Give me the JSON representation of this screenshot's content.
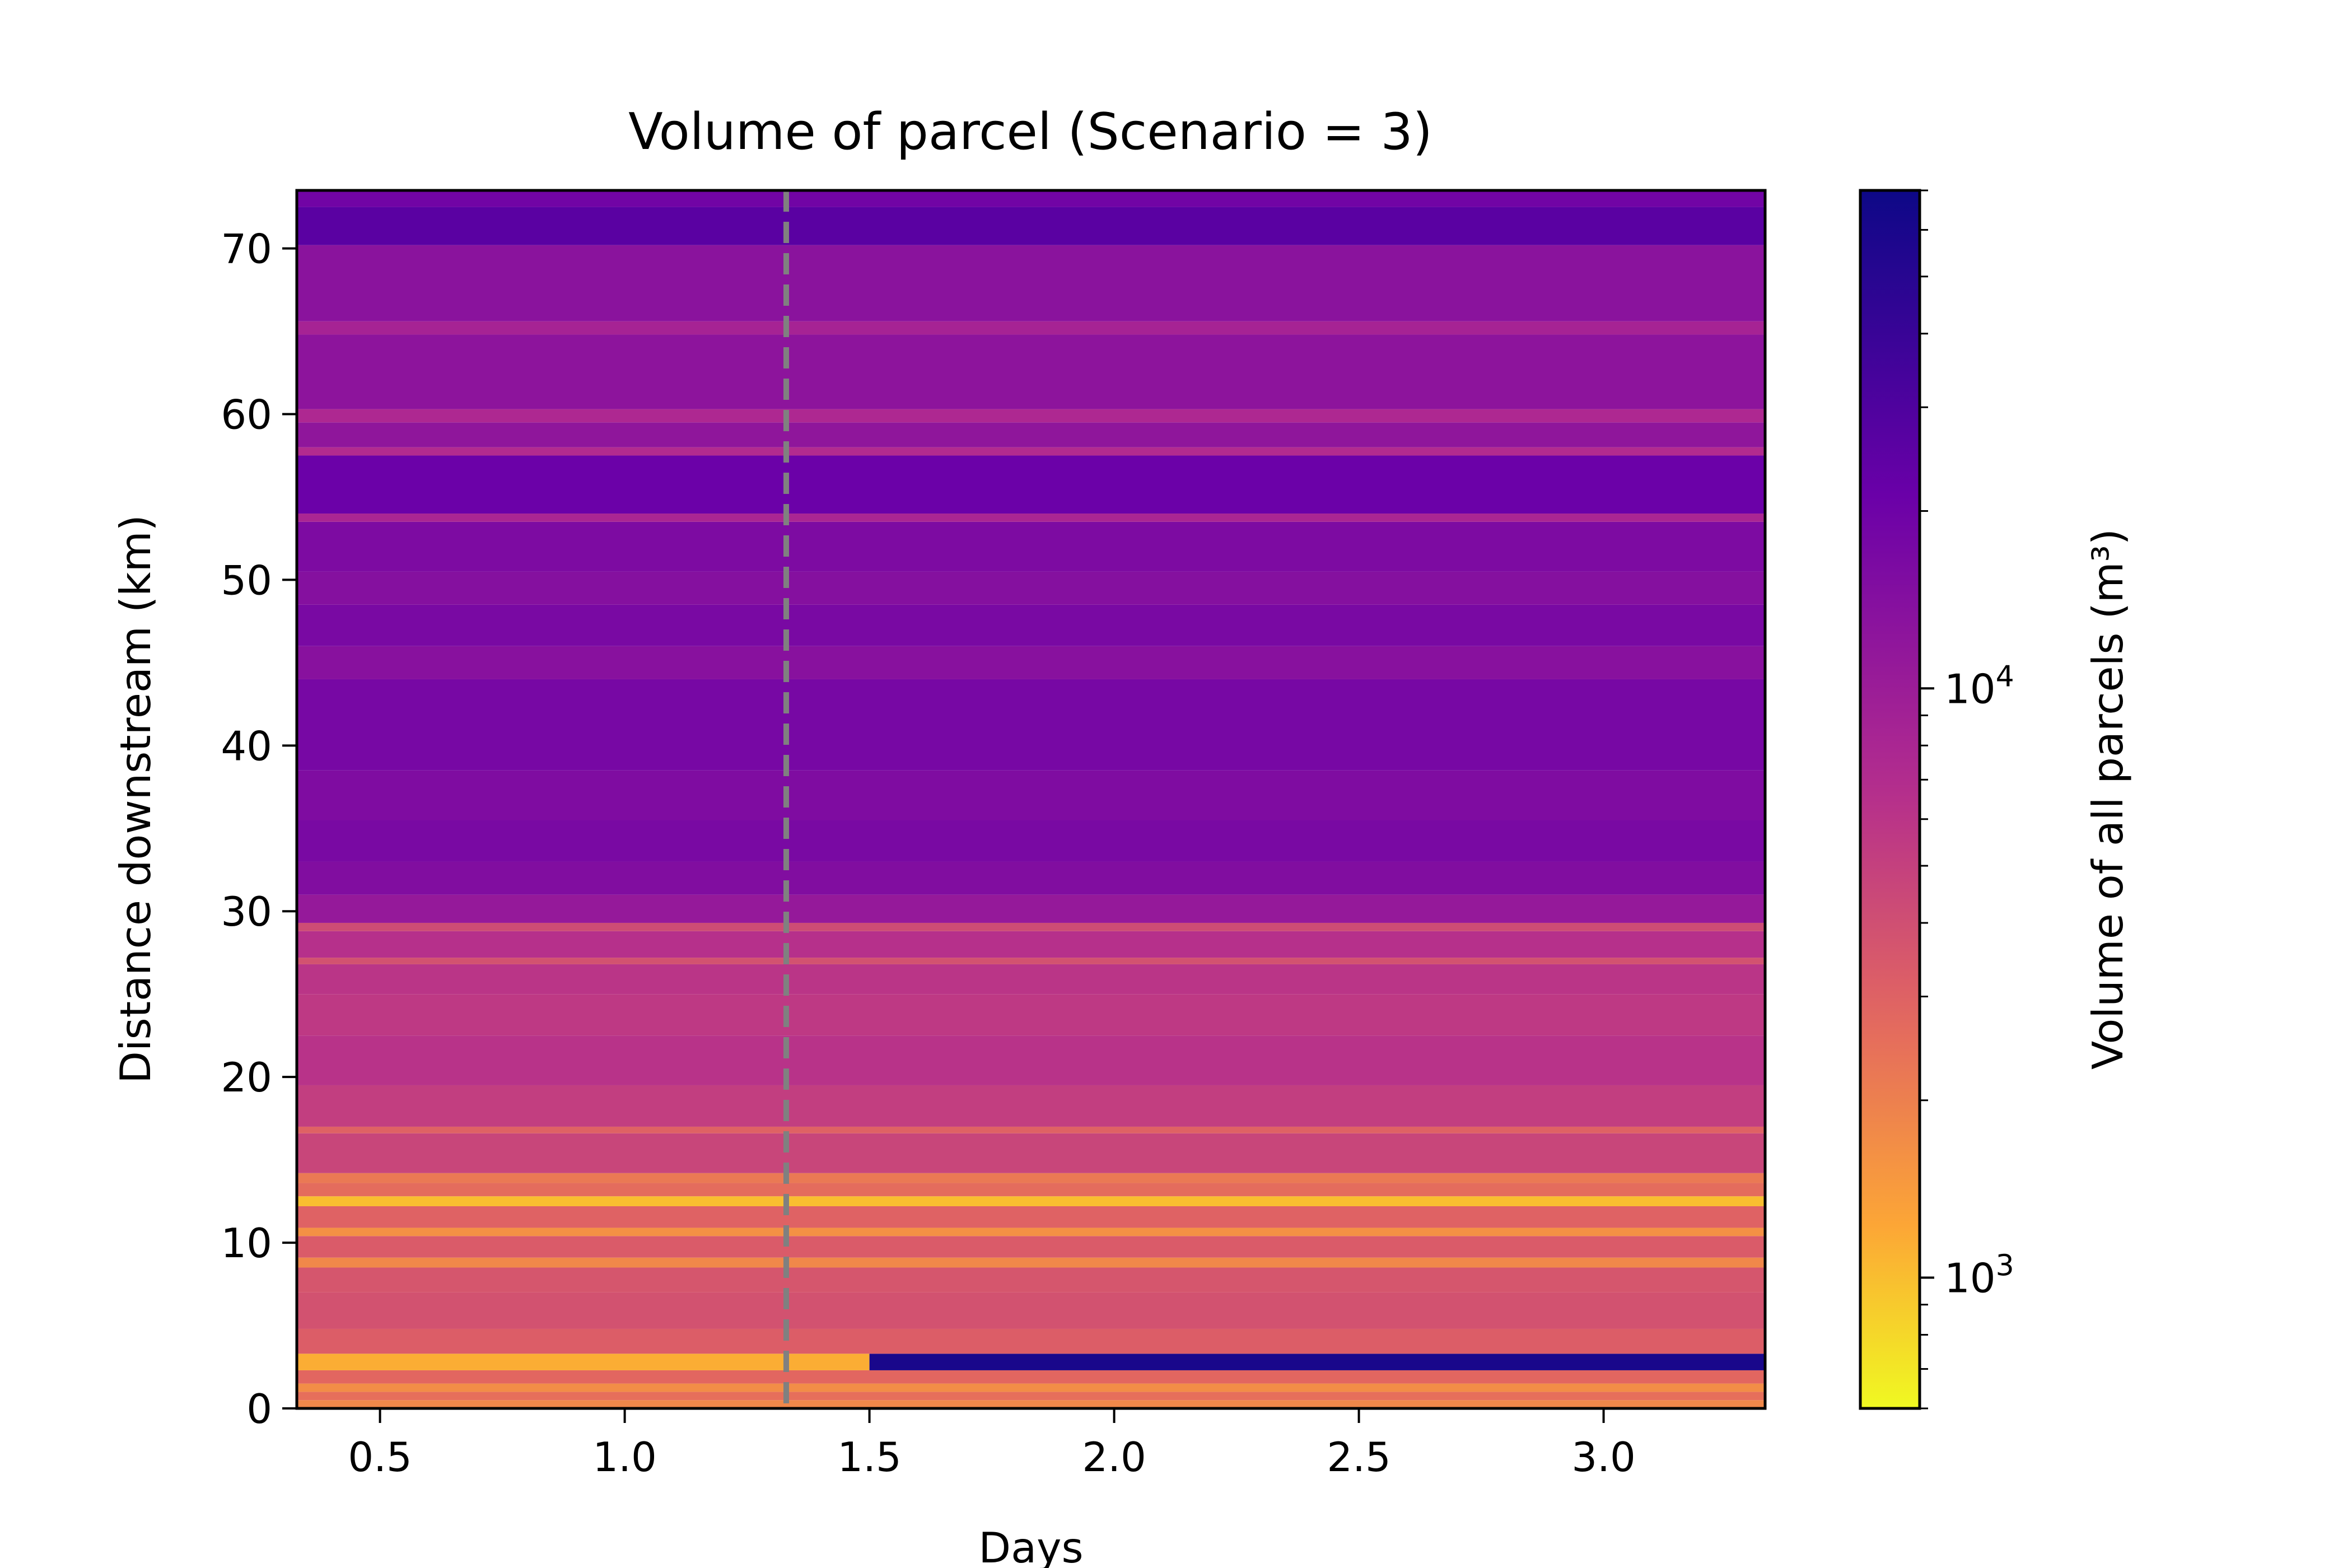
{
  "chart_data": {
    "type": "heatmap",
    "title": "Volume of parcel (Scenario = 3)",
    "xlabel": "Days",
    "ylabel": "Distance downstream (km)",
    "xlim": [
      0.33,
      3.33
    ],
    "ylim": [
      0,
      73.5
    ],
    "x_ticks": [
      "0.5",
      "1.0",
      "1.5",
      "2.0",
      "2.5",
      "3.0"
    ],
    "x_tick_values": [
      0.5,
      1.0,
      1.5,
      2.0,
      2.5,
      3.0
    ],
    "y_ticks": [
      "0",
      "10",
      "20",
      "30",
      "40",
      "50",
      "60",
      "70"
    ],
    "y_tick_values": [
      0,
      10,
      20,
      30,
      40,
      50,
      60,
      70
    ],
    "colormap": "plasma (reversed)",
    "colors": {
      "low": "#f0f921",
      "mid_low": "#fca636",
      "mid": "#e16462",
      "mid_high": "#b12a90",
      "high": "#6a00a8",
      "max": "#0d0887",
      "vline": "#808080"
    },
    "vertical_line": {
      "x": 1.33,
      "style": "dashed"
    },
    "colorbar": {
      "label": "Volume of all parcels (m³)",
      "scale": "log",
      "range": [
        600,
        70000
      ],
      "tick_values": [
        1000,
        10000
      ],
      "tick_labels": [
        {
          "base": "10",
          "exp": "3"
        },
        {
          "base": "10",
          "exp": "4"
        }
      ]
    },
    "bands": [
      {
        "y0": 0,
        "y1": 0.5,
        "value": 1800
      },
      {
        "y0": 0.5,
        "y1": 1.0,
        "value": 2500
      },
      {
        "y0": 1.0,
        "y1": 1.5,
        "value": 1700
      },
      {
        "y0": 1.5,
        "y1": 2.3,
        "value": 2800
      },
      {
        "y0": 2.3,
        "y1": 3.3,
        "value": 1150,
        "x0": 0.33,
        "x1": 1.5
      },
      {
        "y0": 2.3,
        "y1": 3.3,
        "value": 1300,
        "x0": 1.5,
        "x1": 3.33,
        "override": 60000
      },
      {
        "y0": 3.3,
        "y1": 4.8,
        "value": 3200
      },
      {
        "y0": 4.8,
        "y1": 7.0,
        "value": 3800
      },
      {
        "y0": 7.0,
        "y1": 8.5,
        "value": 3600
      },
      {
        "y0": 8.5,
        "y1": 9.1,
        "value": 1800
      },
      {
        "y0": 9.1,
        "y1": 10.4,
        "value": 3300
      },
      {
        "y0": 10.4,
        "y1": 10.9,
        "value": 1600
      },
      {
        "y0": 10.9,
        "y1": 12.2,
        "value": 3000
      },
      {
        "y0": 12.2,
        "y1": 12.8,
        "value": 1000
      },
      {
        "y0": 12.8,
        "y1": 13.6,
        "value": 2600
      },
      {
        "y0": 13.6,
        "y1": 14.2,
        "value": 2200
      },
      {
        "y0": 14.2,
        "y1": 16.6,
        "value": 4600
      },
      {
        "y0": 16.6,
        "y1": 17.0,
        "value": 3000
      },
      {
        "y0": 17.0,
        "y1": 19.5,
        "value": 5200
      },
      {
        "y0": 19.5,
        "y1": 22.5,
        "value": 6200
      },
      {
        "y0": 22.5,
        "y1": 25.0,
        "value": 5600
      },
      {
        "y0": 25.0,
        "y1": 26.8,
        "value": 6000
      },
      {
        "y0": 26.8,
        "y1": 27.2,
        "value": 3800
      },
      {
        "y0": 27.2,
        "y1": 28.8,
        "value": 6500
      },
      {
        "y0": 28.8,
        "y1": 29.3,
        "value": 4200
      },
      {
        "y0": 29.3,
        "y1": 31.0,
        "value": 11000
      },
      {
        "y0": 31.0,
        "y1": 33.0,
        "value": 15000
      },
      {
        "y0": 33.0,
        "y1": 35.5,
        "value": 17000
      },
      {
        "y0": 35.5,
        "y1": 38.5,
        "value": 15500
      },
      {
        "y0": 38.5,
        "y1": 44.0,
        "value": 17500
      },
      {
        "y0": 44.0,
        "y1": 46.0,
        "value": 13500
      },
      {
        "y0": 46.0,
        "y1": 48.5,
        "value": 17000
      },
      {
        "y0": 48.5,
        "y1": 50.5,
        "value": 14000
      },
      {
        "y0": 50.5,
        "y1": 53.5,
        "value": 16000
      },
      {
        "y0": 53.5,
        "y1": 54.0,
        "value": 8000
      },
      {
        "y0": 54.0,
        "y1": 57.5,
        "value": 21000
      },
      {
        "y0": 57.5,
        "y1": 58.0,
        "value": 7000
      },
      {
        "y0": 58.0,
        "y1": 59.5,
        "value": 12000
      },
      {
        "y0": 59.5,
        "y1": 60.3,
        "value": 7500
      },
      {
        "y0": 60.3,
        "y1": 64.8,
        "value": 12500
      },
      {
        "y0": 64.8,
        "y1": 65.6,
        "value": 8500
      },
      {
        "y0": 65.6,
        "y1": 70.2,
        "value": 13000
      },
      {
        "y0": 70.2,
        "y1": 72.5,
        "value": 26000
      },
      {
        "y0": 72.5,
        "y1": 73.5,
        "value": 19000
      }
    ]
  }
}
